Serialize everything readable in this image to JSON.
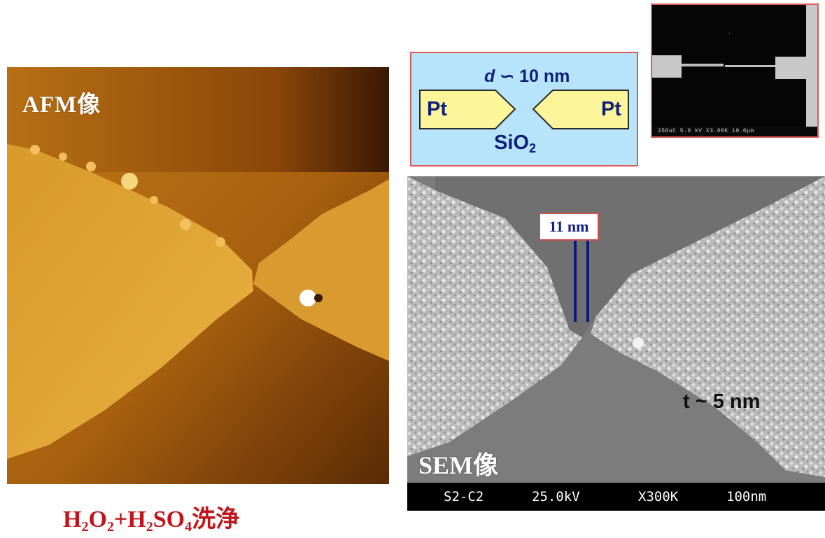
{
  "afm": {
    "label": "AFM像"
  },
  "caption": {
    "h": "H",
    "two_a": "2",
    "o": "O",
    "two_b": "2",
    "plus_h": "+H",
    "two_c": "2",
    "so": "SO",
    "four": "4",
    "suffix": "洗浄"
  },
  "schematic": {
    "gap_symbol": "d",
    "gap_value": "∽ 10 nm",
    "electrode_left": "Pt",
    "electrode_right": "Pt",
    "substrate_base": "SiO",
    "substrate_sub": "2"
  },
  "inset": {
    "info": "250uC  5.0 kV  X3.00K  10.0μm"
  },
  "sem": {
    "label": "SEM像",
    "gap_label": "11 nm",
    "thickness": "t ~ 5 nm",
    "info_id": "S2-C2",
    "info_kv": "25.0kV",
    "info_mag": "X300K",
    "info_scale": "100nm"
  },
  "colors": {
    "caption": "#c0161b",
    "schematic_bg": "#b8e4fb",
    "electrode_fill": "#fdf59a",
    "schematic_text": "#0f1f7a",
    "frame_border": "#e05a5a",
    "gap_marker": "#0a1a78"
  }
}
